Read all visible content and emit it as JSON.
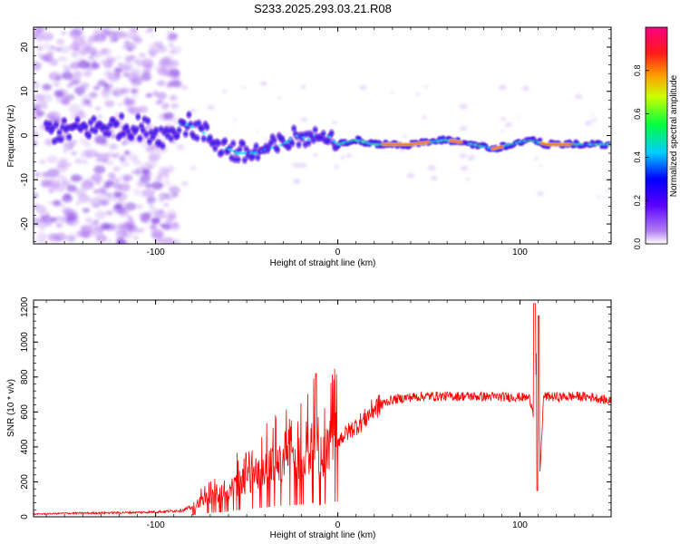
{
  "title": "S233.2025.293.03.21.R08",
  "chart_data": [
    {
      "type": "heatmap",
      "name": "spectrogram",
      "xlabel": "Height of straight line (km)",
      "ylabel": "Frequency (Hz)",
      "xlim": [
        -167,
        150
      ],
      "ylim": [
        -24.5,
        24.5
      ],
      "xticks": [
        -100,
        0,
        100
      ],
      "xtick_labels": [
        "-100",
        "0",
        "100"
      ],
      "yticks": [
        -20,
        -10,
        0,
        10,
        20
      ],
      "ytick_labels": [
        "-20",
        "-10",
        "0",
        "10",
        "20"
      ],
      "colorbar": {
        "label": "Normalized spectral amplitude",
        "range": [
          0,
          1
        ],
        "ticks": [
          0,
          0.2,
          0.4,
          0.6,
          0.8
        ],
        "tick_labels": [
          "0.0",
          "0.2",
          "0.4",
          "0.6",
          "0.8"
        ],
        "colors": [
          "#ffffff",
          "#8a2be2",
          "#0000ff",
          "#00ffff",
          "#00ff00",
          "#ffff00",
          "#ff8000",
          "#ff0000",
          "#ff00aa"
        ]
      },
      "ridge": {
        "x": [
          -150,
          -130,
          -110,
          -95,
          -85,
          -75,
          -65,
          -55,
          -45,
          -38,
          -30,
          -22,
          -15,
          -10,
          -5,
          0,
          10,
          20,
          40,
          60,
          75,
          85,
          95,
          105,
          115,
          130,
          150
        ],
        "y": [
          1,
          2,
          2,
          0,
          3,
          1,
          -2,
          -4,
          -4,
          -3,
          -2,
          0,
          -1,
          1,
          0,
          -2,
          -1,
          -2,
          -2,
          -1,
          -2,
          -3,
          -2,
          -1,
          -2,
          -2,
          -2
        ]
      }
    },
    {
      "type": "line",
      "name": "snr",
      "xlabel": "Height of straight line (km)",
      "ylabel": "SNR (10 * v/v)",
      "xlim": [
        -167,
        150
      ],
      "ylim": [
        0,
        1240
      ],
      "xticks": [
        -100,
        0,
        100
      ],
      "xtick_labels": [
        "-100",
        "0",
        "100"
      ],
      "yticks": [
        0,
        200,
        400,
        600,
        800,
        1000,
        1200
      ],
      "ytick_labels": [
        "0",
        "200",
        "400",
        "600",
        "800",
        "1000",
        "1200"
      ],
      "series": [
        {
          "name": "SNR",
          "color": "#ff0000",
          "x": [
            -167,
            -150,
            -130,
            -110,
            -95,
            -85,
            -80,
            -75,
            -70,
            -65,
            -60,
            -55,
            -50,
            -45,
            -40,
            -35,
            -30,
            -25,
            -20,
            -15,
            -12,
            -10,
            -8,
            -5,
            -2,
            0,
            5,
            10,
            15,
            18,
            20,
            25,
            30,
            40,
            50,
            60,
            70,
            80,
            90,
            100,
            105,
            107,
            108,
            109,
            110,
            111,
            113,
            120,
            130,
            140,
            150
          ],
          "y": [
            15,
            20,
            22,
            25,
            30,
            38,
            55,
            90,
            110,
            130,
            150,
            190,
            210,
            240,
            270,
            300,
            320,
            330,
            350,
            380,
            420,
            330,
            350,
            400,
            430,
            440,
            480,
            520,
            560,
            600,
            620,
            650,
            670,
            685,
            690,
            690,
            690,
            688,
            686,
            685,
            680,
            620,
            500,
            900,
            1200,
            250,
            690,
            685,
            690,
            685,
            660
          ]
        }
      ]
    }
  ]
}
